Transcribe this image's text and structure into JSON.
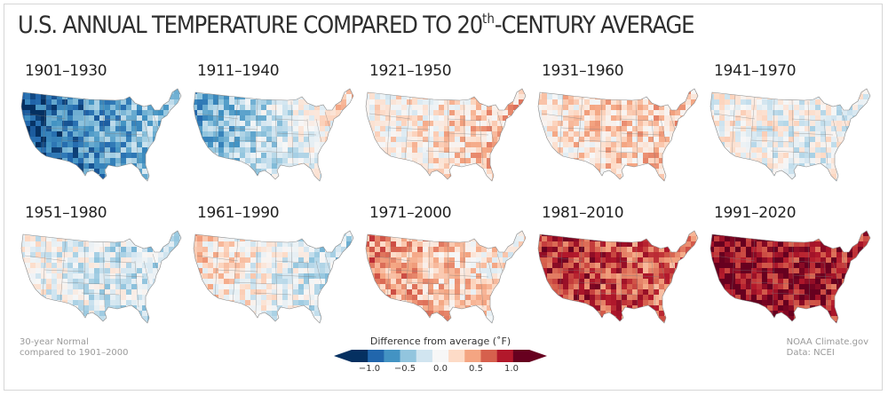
{
  "title": "U.S. ANNUAL TEMPERATURE COMPARED TO 20",
  "title_sup": "th",
  "title_end": "-CENTURY AVERAGE",
  "panels": [
    {
      "label": "1901–1930",
      "anomaly": -0.9,
      "west": -1.1,
      "east": -0.3
    },
    {
      "label": "1911–1940",
      "anomaly": -0.3,
      "west": -0.7,
      "east": 0.3
    },
    {
      "label": "1921–1950",
      "anomaly": 0.25,
      "west": 0.0,
      "east": 0.4
    },
    {
      "label": "1931–1960",
      "anomaly": 0.3,
      "west": 0.15,
      "east": 0.35
    },
    {
      "label": "1941–1970",
      "anomaly": -0.05,
      "west": 0.0,
      "east": -0.1
    },
    {
      "label": "1951–1980",
      "anomaly": -0.15,
      "west": 0.0,
      "east": -0.35
    },
    {
      "label": "1961–1990",
      "anomaly": -0.05,
      "west": 0.25,
      "east": -0.4
    },
    {
      "label": "1971–2000",
      "anomaly": 0.3,
      "west": 0.6,
      "east": 0.0
    },
    {
      "label": "1981–2010",
      "anomaly": 0.8,
      "west": 1.0,
      "east": 0.6
    },
    {
      "label": "1991–2020",
      "anomaly": 1.05,
      "west": 1.2,
      "east": 0.9
    }
  ],
  "legend": {
    "title": "Difference from average (˚F)",
    "ticks": [
      "−1.0",
      "−0.5",
      "0.0",
      "0.5",
      "1.0"
    ],
    "colors": [
      "#053061",
      "#2166ac",
      "#4393c3",
      "#92c5de",
      "#d1e5f0",
      "#f7f7f7",
      "#fddbc7",
      "#f4a582",
      "#d6604d",
      "#b2182b",
      "#67001f"
    ]
  },
  "footer_left": [
    "30-year Normal",
    "compared to 1901–2000"
  ],
  "footer_right": [
    "NOAA Climate.gov",
    "Data: NCEI"
  ]
}
